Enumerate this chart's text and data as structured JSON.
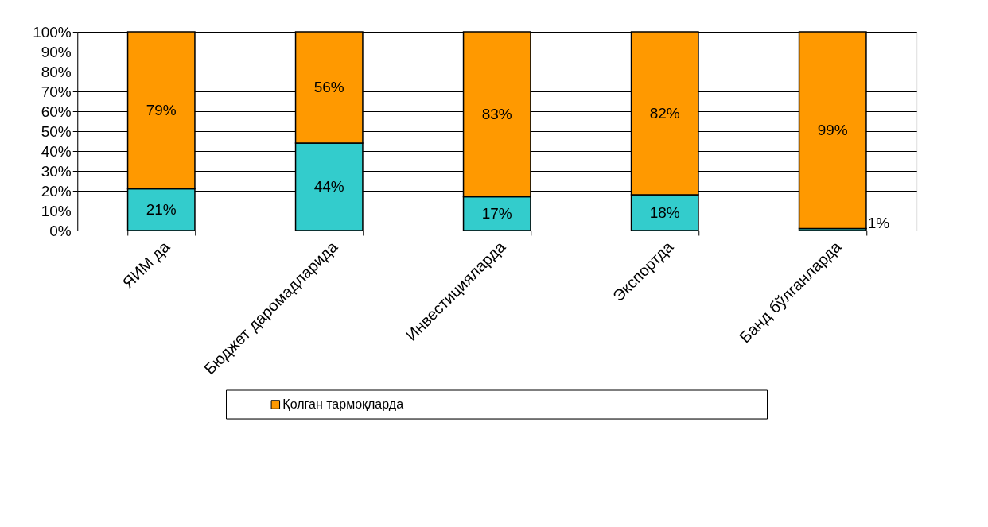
{
  "chart_data": {
    "type": "bar",
    "stacked": true,
    "grid": "y",
    "legend": "bottom",
    "categories": [
      "ЯИМ да",
      "Бюджет даромадларида",
      "Инвестицияларда",
      "Экспортда",
      "Банд бўлганларда"
    ],
    "series": [
      {
        "color": "#33cccc",
        "values": [
          21,
          44,
          17,
          18,
          1
        ],
        "value_labels": [
          "21%",
          "44%",
          "17%",
          "18%",
          "1%"
        ]
      },
      {
        "name": "Қолган тармоқларда",
        "color": "#ff9900",
        "values": [
          79,
          56,
          83,
          82,
          99
        ],
        "value_labels": [
          "79%",
          "56%",
          "83%",
          "82%",
          "99%"
        ]
      }
    ],
    "ylim": [
      0,
      100
    ],
    "yticks": [
      {
        "value": 0,
        "label": "0%"
      },
      {
        "value": 10,
        "label": "10%"
      },
      {
        "value": 20,
        "label": "20%"
      },
      {
        "value": 30,
        "label": "30%"
      },
      {
        "value": 40,
        "label": "40%"
      },
      {
        "value": 50,
        "label": "50%"
      },
      {
        "value": 60,
        "label": "60%"
      },
      {
        "value": 70,
        "label": "70%"
      },
      {
        "value": 80,
        "label": "80%"
      },
      {
        "value": 90,
        "label": "90%"
      },
      {
        "value": 100,
        "label": "100%"
      }
    ]
  }
}
